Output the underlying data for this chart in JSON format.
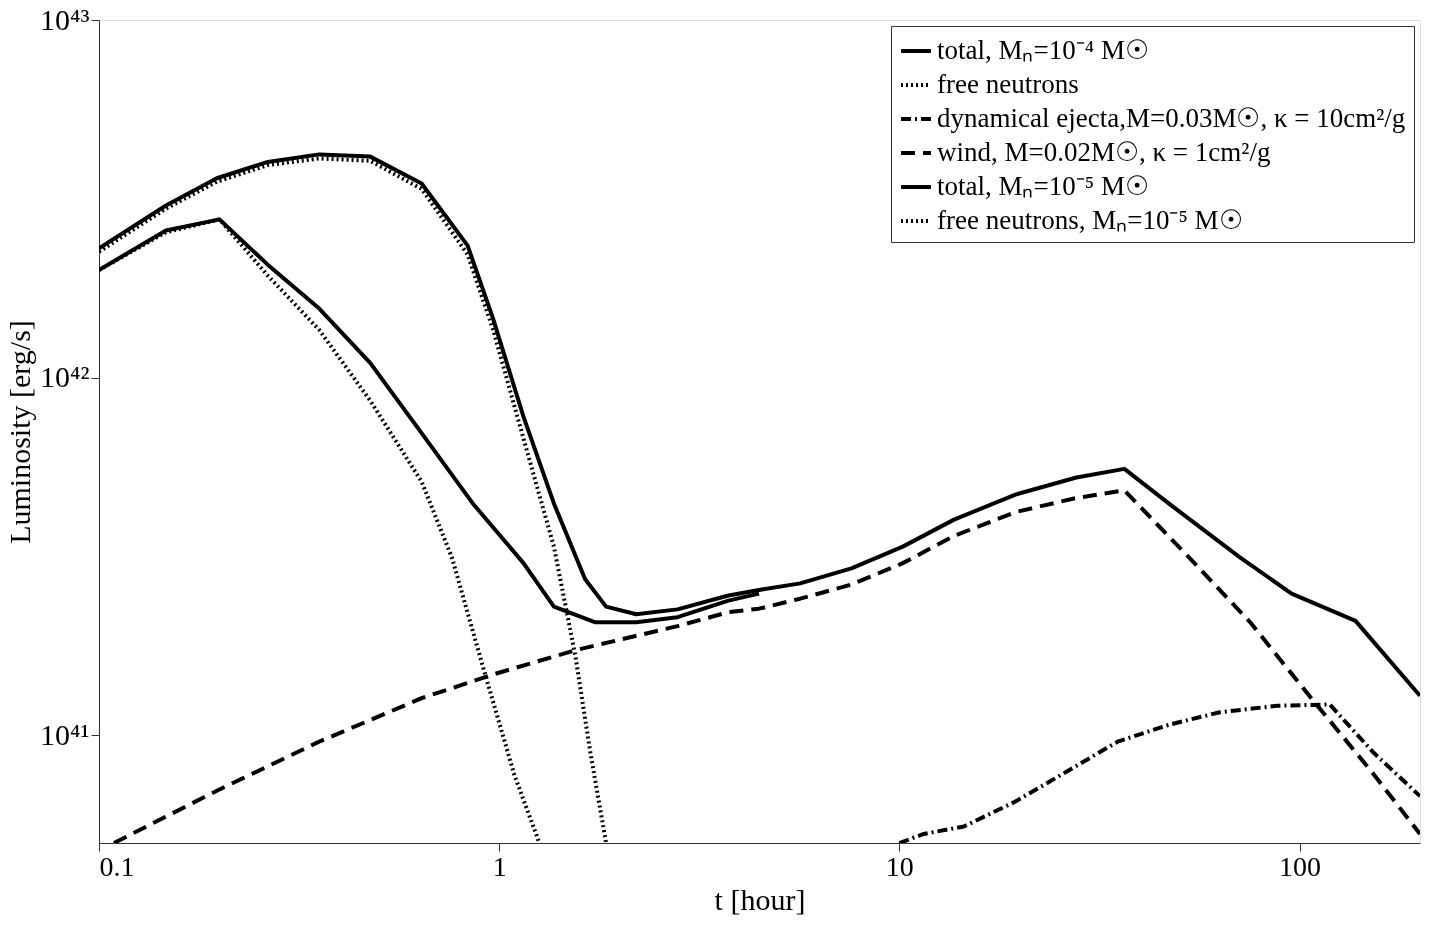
{
  "chart_data": {
    "type": "line",
    "xlabel": "t [hour]",
    "ylabel": "Luminosity [erg/s]",
    "log": "xy",
    "xlim": [
      0.1,
      200
    ],
    "ylim": [
      5e+40,
      1e+43
    ],
    "xticks": [
      0.1,
      1,
      10,
      100
    ],
    "yticks": [
      {
        "value": 1e+41,
        "label": "10⁴¹"
      },
      {
        "value": 1e+42,
        "label": "10⁴²"
      },
      {
        "value": 1e+43,
        "label": "10⁴³"
      }
    ],
    "legend": "top right",
    "grid": false,
    "series": [
      {
        "name": "total, Mₙ=10⁻⁴ M☉",
        "color": "#000000",
        "line_style": "solid",
        "x": [
          0.1,
          0.147,
          0.197,
          0.264,
          0.355,
          0.476,
          0.64,
          0.834,
          0.966,
          1.15,
          1.37,
          1.64,
          1.85,
          2.2,
          2.79,
          3.74,
          4.46,
          5.65,
          7.59,
          10.2,
          13.7,
          19.5,
          27.7,
          36.5,
          47.1,
          71.1,
          95.5,
          138,
          200
        ],
        "values": [
          2.3e+42,
          3.03e+42,
          3.61e+42,
          4.01e+42,
          4.21e+42,
          4.15e+42,
          3.49e+42,
          2.34e+42,
          1.46e+42,
          7.78e+41,
          4.45e+41,
          2.73e+41,
          2.29e+41,
          2.18e+41,
          2.25e+41,
          2.46e+41,
          2.55e+41,
          2.66e+41,
          2.93e+41,
          3.37e+41,
          4.01e+41,
          4.71e+41,
          5.26e+41,
          5.56e+41,
          4.45e+41,
          3.14e+41,
          2.49e+41,
          2.09e+41,
          1.29e+41
        ]
      },
      {
        "name": "free neutrons",
        "color": "#000000",
        "line_style": "dotted",
        "x": [
          0.1,
          0.147,
          0.197,
          0.264,
          0.355,
          0.476,
          0.64,
          0.834,
          0.966,
          1.15,
          1.37,
          1.55,
          1.69,
          1.85
        ],
        "values": [
          2.25e+42,
          2.97e+42,
          3.53e+42,
          3.93e+42,
          4.1e+42,
          4.04e+42,
          3.37e+42,
          2.21e+42,
          1.36e+42,
          6.76e+41,
          3.37e+41,
          1.67e+41,
          8.95e+40,
          5e+40
        ]
      },
      {
        "name": "dynamical ejecta,M=0.03M☉, κ = 10cm²/g",
        "color": "#000000",
        "line_style": "dashdot",
        "x": [
          10,
          11.5,
          14.5,
          19.5,
          26.1,
          35.1,
          47.1,
          63.2,
          88,
          119,
          153,
          200
        ],
        "values": [
          5e+40,
          5.3e+40,
          5.56e+40,
          6.53e+40,
          7.9e+40,
          9.6e+40,
          1.07e+41,
          1.16e+41,
          1.21e+41,
          1.22e+41,
          8.95e+40,
          6.76e+40
        ]
      },
      {
        "name": "wind, M=0.02M☉, κ = 1cm²/g",
        "color": "#000000",
        "line_style": "dashed",
        "x": [
          0.109,
          0.197,
          0.355,
          0.64,
          0.966,
          1.55,
          2.79,
          3.74,
          4.46,
          5.65,
          7.59,
          10.2,
          13.7,
          19.5,
          27.7,
          36.5,
          53,
          75.3,
          107,
          153,
          200
        ],
        "values": [
          5e+40,
          7e+40,
          9.6e+40,
          1.27e+41,
          1.48e+41,
          1.73e+41,
          2.02e+41,
          2.21e+41,
          2.26e+41,
          2.41e+41,
          2.64e+41,
          3.03e+41,
          3.61e+41,
          4.21e+41,
          4.61e+41,
          4.84e+41,
          3.14e+41,
          2.07e+41,
          1.27e+41,
          7.8e+40,
          5.3e+40
        ]
      },
      {
        "name": "total, Mₙ=10⁻⁵ M☉",
        "color": "#000000",
        "line_style": "solid",
        "x": [
          0.1,
          0.147,
          0.2,
          0.264,
          0.355,
          0.476,
          0.64,
          0.859,
          1.15,
          1.37,
          1.74,
          2.2,
          2.79,
          3.74,
          4.46
        ],
        "values": [
          2e+42,
          2.58e+42,
          2.77e+42,
          2.07e+42,
          1.56e+42,
          1.1e+42,
          7e+41,
          4.45e+41,
          3.03e+41,
          2.29e+41,
          2.07e+41,
          2.07e+41,
          2.14e+41,
          2.38e+41,
          2.49e+41
        ]
      },
      {
        "name": "free neutrons, Mₙ=10⁻⁵ M☉",
        "color": "#000000",
        "line_style": "dotted",
        "x": [
          0.1,
          0.147,
          0.2,
          0.264,
          0.355,
          0.476,
          0.64,
          0.762,
          0.91,
          1.09,
          1.26
        ],
        "values": [
          2e+42,
          2.55e+42,
          2.77e+42,
          1.93e+42,
          1.36e+42,
          8.63e+41,
          5.12e+41,
          3.14e+41,
          1.56e+41,
          7.78e+40,
          5e+40
        ]
      }
    ]
  }
}
